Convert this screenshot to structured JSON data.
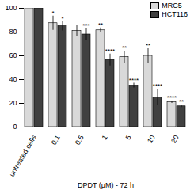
{
  "chart_data": {
    "type": "bar",
    "x_label": "DPDT (μM) - 72 h",
    "categories": [
      "untreated cells",
      "0.1",
      "0.5",
      "1",
      "5",
      "10",
      "20"
    ],
    "series": [
      {
        "name": "MRC5",
        "color": "#d9d9d9",
        "values": [
          100,
          87.5,
          81,
          81.5,
          59,
          60,
          21
        ],
        "error": [
          0,
          6,
          5,
          2,
          5,
          6,
          1
        ],
        "significance": [
          null,
          "*",
          null,
          "**",
          "**",
          "**",
          "****"
        ]
      },
      {
        "name": "HCT116",
        "color": "#404040",
        "values": [
          100,
          85,
          78,
          56.5,
          35,
          25,
          17.5
        ],
        "error": [
          0,
          4,
          5,
          5,
          2,
          7,
          1
        ],
        "significance": [
          null,
          "*",
          "***",
          "****",
          "****",
          "****",
          "**"
        ]
      }
    ],
    "ylim": [
      0,
      100
    ],
    "yticks": [
      0,
      20,
      40,
      60,
      80,
      100
    ],
    "legend": "top-right"
  }
}
